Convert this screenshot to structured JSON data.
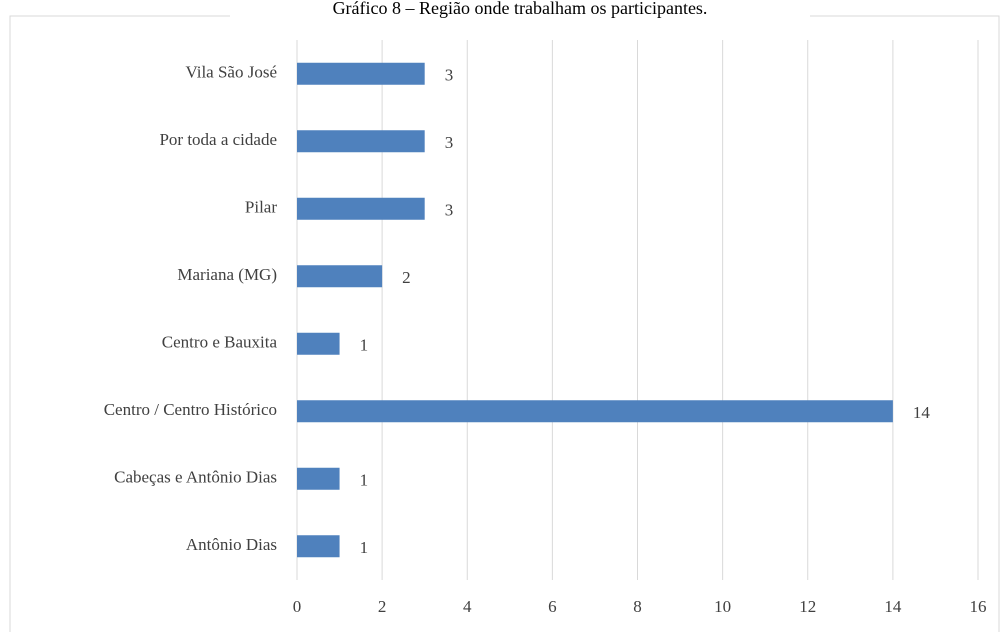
{
  "chart_data": {
    "type": "bar",
    "orientation": "horizontal",
    "title": "Gráfico 8 – Região onde trabalham os participantes.",
    "categories": [
      "Vila São José",
      "Por toda a cidade",
      "Pilar",
      "Mariana (MG)",
      "Centro e Bauxita",
      "Centro / Centro Histórico",
      "Cabeças e Antônio Dias",
      "Antônio Dias"
    ],
    "values": [
      3,
      3,
      3,
      2,
      1,
      14,
      1,
      1
    ],
    "color": "#4f81bd",
    "xlim": [
      0,
      16
    ],
    "xticks": [
      0,
      2,
      4,
      6,
      8,
      10,
      12,
      14,
      16
    ],
    "grid": true
  }
}
